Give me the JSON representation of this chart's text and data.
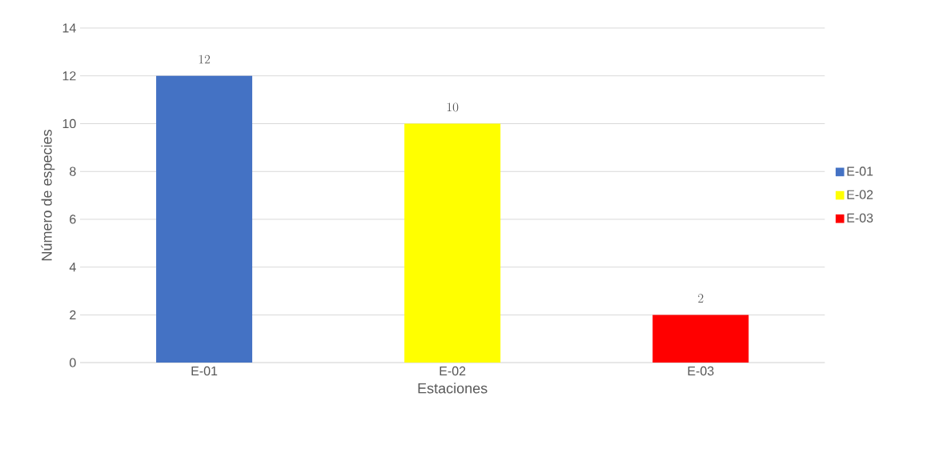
{
  "chart_data": {
    "type": "bar",
    "xlabel": "Estaciones",
    "ylabel": "Número de especies",
    "categories": [
      "E-01",
      "E-02",
      "E-03"
    ],
    "series": [
      {
        "name": "E-01",
        "color": "#4472c4",
        "values": [
          12,
          null,
          null
        ]
      },
      {
        "name": "E-02",
        "color": "#ffff00",
        "values": [
          null,
          10,
          null
        ]
      },
      {
        "name": "E-03",
        "color": "#ff0000",
        "values": [
          null,
          null,
          2
        ]
      }
    ],
    "ylim": [
      0,
      14
    ],
    "yticks": [
      0,
      2,
      4,
      6,
      8,
      10,
      12,
      14
    ],
    "grid": "y",
    "legend": "right",
    "data_labels": true
  }
}
